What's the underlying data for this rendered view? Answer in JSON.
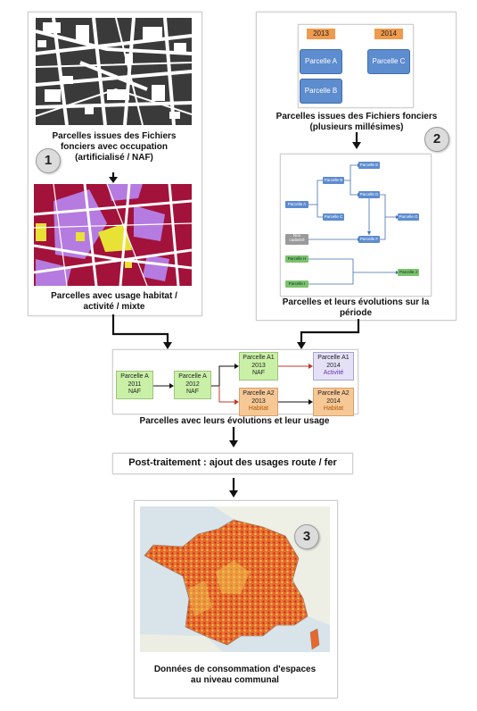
{
  "panel1": {
    "badge": "1",
    "caption_top_1": "Parcelles issues des Fichiers",
    "caption_top_2": "fonciers avec occupation",
    "caption_top_3": "(artificialisé / NAF)",
    "caption_bottom_1": "Parcelles avec usage habitat /",
    "caption_bottom_2": "activité / mixte"
  },
  "panel2": {
    "badge": "2",
    "year_left": "2013",
    "year_right": "2014",
    "parcel_a": "Parcelle A",
    "parcel_b": "Parcelle B",
    "parcel_c": "Parcelle C",
    "caption_top_1": "Parcelles issues des Fichiers fonciers",
    "caption_top_2": "(plusieurs millésimes)",
    "caption_bottom_1": "Parcelles et leurs évolutions sur la",
    "caption_bottom_2": "période",
    "net": {
      "a": "Parcelle A",
      "b": "Parcelle B",
      "c": "Parcelle C",
      "d": "Parcelle D",
      "e": "Parcelle E",
      "f": "Parcelle F",
      "g": "Parcelle G",
      "nc_1": "Non",
      "nc_2": "cadastré",
      "h": "Parcelle H",
      "i": "Parcelle I",
      "j": "Parcelle J"
    }
  },
  "evolution": {
    "a2011": {
      "name": "Parcelle A",
      "year": "2011",
      "usage": "NAF"
    },
    "a2012": {
      "name": "Parcelle A",
      "year": "2012",
      "usage": "NAF"
    },
    "a1_2013": {
      "name": "Parcelle A1",
      "year": "2013",
      "usage": "NAF"
    },
    "a1_2014": {
      "name": "Parcelle A1",
      "year": "2014",
      "usage": "Activité"
    },
    "a2_2013": {
      "name": "Parcelle A2",
      "year": "2013",
      "usage": "Habitat"
    },
    "a2_2014": {
      "name": "Parcelle A2",
      "year": "2014",
      "usage": "Habitat"
    },
    "caption": "Parcelles avec leurs évolutions et leur usage"
  },
  "post": {
    "label": "Post-traitement : ajout des usages route / fer"
  },
  "panel3": {
    "badge": "3",
    "caption_1": "Données de consommation d'espaces",
    "caption_2": "au niveau communal"
  },
  "colors": {
    "parcel_blue": "#5d8ccf",
    "year_orange": "#f09a4d",
    "naf_green": "#c9f0a6",
    "habitat_orange": "#f6c896",
    "activite_lavender": "#e4e1f7",
    "map_crimson": "#a3123a",
    "map_purple": "#b57be0",
    "map_yellow": "#e8e234"
  }
}
